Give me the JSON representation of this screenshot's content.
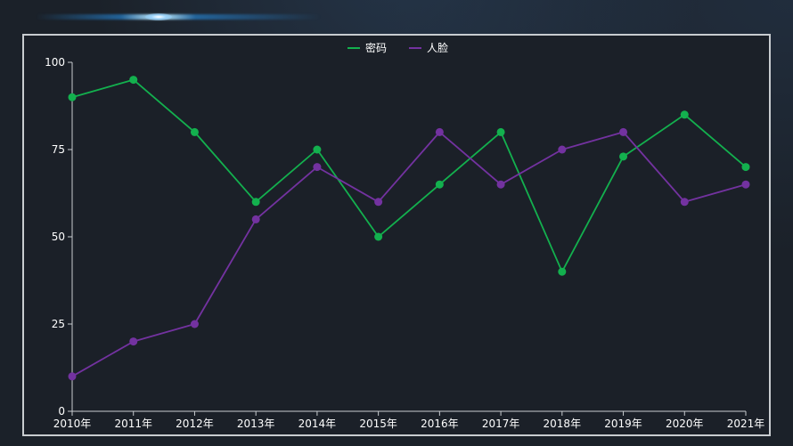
{
  "chart_data": {
    "type": "line",
    "categories": [
      "2010年",
      "2011年",
      "2012年",
      "2013年",
      "2014年",
      "2015年",
      "2016年",
      "2017年",
      "2018年",
      "2019年",
      "2020年",
      "2021年"
    ],
    "series": [
      {
        "name": "密码",
        "color": "#13b04e",
        "values": [
          90,
          95,
          80,
          60,
          75,
          50,
          65,
          80,
          40,
          73,
          85,
          70
        ]
      },
      {
        "name": "人脸",
        "color": "#7332a0",
        "values": [
          10,
          20,
          25,
          55,
          70,
          60,
          80,
          65,
          75,
          80,
          60,
          65
        ]
      }
    ],
    "ylim": [
      0,
      100
    ],
    "yticks": [
      "0",
      "25",
      "50",
      "75",
      "100"
    ],
    "legend": "top-center",
    "grid": false
  },
  "colors": {
    "axis": "#c8ccd0",
    "text": "#ffffff",
    "background": "#1b2028"
  }
}
